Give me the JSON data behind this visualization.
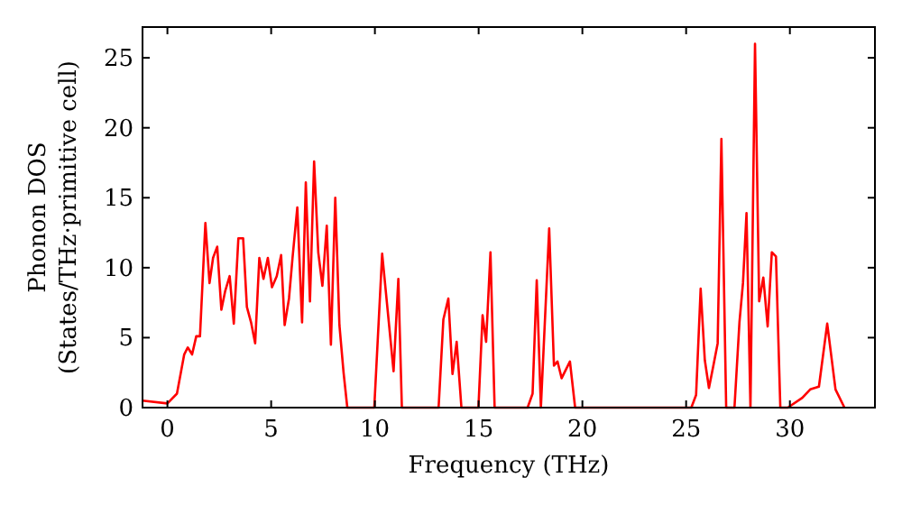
{
  "chart_data": {
    "type": "line",
    "xlabel": "Frequency (THz)",
    "ylabel": "Phonon DOS\n(States/THz·primitive cell)",
    "x": [
      -1.2,
      0,
      0.46,
      0.81,
      0.98,
      1.19,
      1.39,
      1.57,
      1.83,
      2.03,
      2.2,
      2.4,
      2.6,
      2.78,
      3.0,
      3.2,
      3.42,
      3.65,
      3.83,
      4.03,
      4.23,
      4.43,
      4.63,
      4.84,
      5.04,
      5.27,
      5.48,
      5.65,
      5.86,
      6.03,
      6.26,
      6.49,
      6.67,
      6.87,
      7.07,
      7.27,
      7.47,
      7.68,
      7.88,
      8.09,
      8.29,
      8.49,
      8.67,
      9.97,
      10.35,
      10.9,
      11.13,
      11.3,
      13.07,
      13.3,
      13.54,
      13.74,
      13.94,
      14.17,
      14.99,
      15.19,
      15.36,
      15.57,
      15.77,
      17.36,
      17.6,
      17.8,
      18.0,
      18.4,
      18.63,
      18.8,
      19.0,
      19.4,
      19.65,
      25.25,
      25.48,
      25.7,
      25.9,
      26.1,
      26.3,
      26.52,
      26.7,
      26.93,
      27.33,
      27.57,
      27.74,
      27.91,
      28.1,
      28.32,
      28.52,
      28.72,
      28.93,
      29.13,
      29.33,
      29.54,
      29.9,
      30.6,
      30.98,
      31.4,
      31.8,
      32.2,
      32.63
    ],
    "series": [
      {
        "color": "#ff0000",
        "values": [
          0.5,
          0.3,
          1.0,
          3.8,
          4.3,
          3.8,
          5.1,
          5.1,
          13.2,
          8.9,
          10.7,
          11.5,
          7.0,
          8.3,
          9.4,
          6.0,
          12.1,
          12.1,
          7.2,
          6.1,
          4.6,
          10.7,
          9.2,
          10.7,
          8.6,
          9.4,
          10.9,
          5.9,
          7.8,
          10.7,
          14.3,
          6.1,
          16.1,
          7.6,
          17.6,
          11.1,
          8.7,
          13.0,
          4.5,
          15.0,
          5.9,
          2.5,
          0,
          0,
          11.0,
          2.6,
          9.2,
          0,
          0,
          6.3,
          7.8,
          2.4,
          4.7,
          0,
          0,
          6.6,
          4.7,
          11.1,
          0,
          0,
          1.0,
          9.1,
          0,
          12.8,
          3.0,
          3.3,
          2.1,
          3.3,
          0,
          0,
          0.9,
          8.5,
          3.4,
          1.4,
          2.9,
          4.6,
          19.2,
          0,
          0,
          6.1,
          8.9,
          13.9,
          0,
          26.0,
          7.6,
          9.3,
          5.8,
          11.1,
          10.8,
          0,
          0,
          0.7,
          1.3,
          1.5,
          6.0,
          1.3,
          0
        ]
      }
    ],
    "xlim": [
      -1.2,
      34.1
    ],
    "ylim": [
      0,
      27.2
    ],
    "xticks": [
      0,
      5,
      10,
      15,
      20,
      25,
      30
    ],
    "yticks": [
      0,
      5,
      10,
      15,
      20,
      25
    ],
    "line_style": "solid"
  }
}
